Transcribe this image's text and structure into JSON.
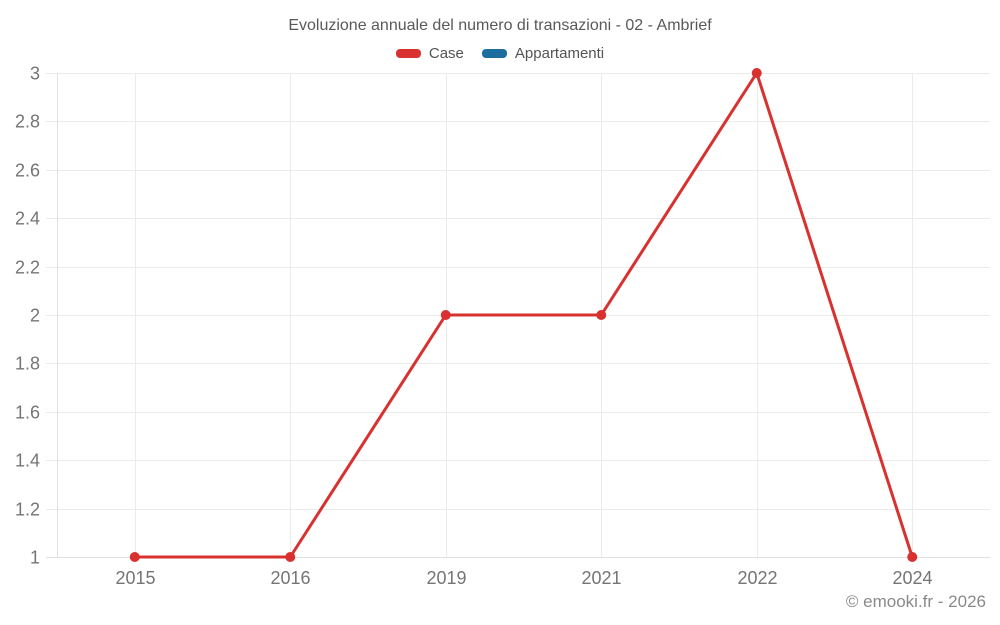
{
  "title": "Evoluzione annuale del numero di transazioni - 02 - Ambrief",
  "legend": {
    "items": [
      {
        "label": "Case",
        "color": "#d8312f"
      },
      {
        "label": "Appartamenti",
        "color": "#1c6e9e"
      }
    ]
  },
  "chart_data": {
    "type": "line",
    "title": "Evoluzione annuale del numero di transazioni - 02 - Ambrief",
    "categories": [
      "2015",
      "2016",
      "2019",
      "2021",
      "2022",
      "2024"
    ],
    "series": [
      {
        "name": "Case",
        "color": "#d8312f",
        "values": [
          1,
          1,
          2,
          2,
          3,
          1
        ]
      },
      {
        "name": "Appartamenti",
        "color": "#1c6e9e",
        "values": []
      }
    ],
    "xlabel": "",
    "ylabel": "",
    "ylim": [
      1,
      3
    ],
    "ytick_step": 0.2,
    "ytick_labels": [
      "1",
      "1.2",
      "1.4",
      "1.6",
      "1.8",
      "2",
      "2.2",
      "2.4",
      "2.6",
      "2.8",
      "3"
    ],
    "grid": true,
    "legend_position": "top"
  },
  "footer": {
    "copyright": "© emooki.fr - 2026"
  }
}
